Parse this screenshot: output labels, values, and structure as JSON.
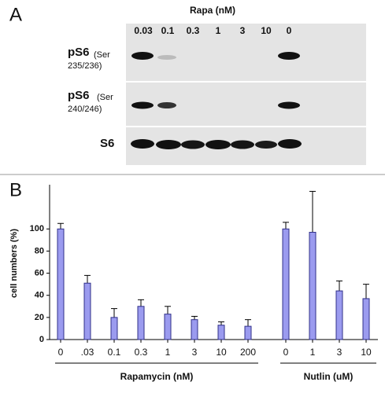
{
  "panel_a": {
    "label": "A",
    "header": "Rapa (nM)",
    "lanes": [
      "0.03",
      "0.1",
      "0.3",
      "1",
      "3",
      "10",
      "0"
    ],
    "rows": [
      {
        "name": "pS6",
        "sub": "(Ser",
        "sub2": "235/236)"
      },
      {
        "name": "pS6",
        "sub": "(Ser",
        "sub2": "240/246)"
      },
      {
        "name": "S6"
      }
    ]
  },
  "chart_data": {
    "type": "bar",
    "label": "B",
    "y_label": "cell numbers (%)",
    "color": "#9b9bef",
    "edge": "#30308a",
    "ylim": [
      0,
      140
    ],
    "yticks": [
      0,
      20,
      40,
      60,
      80,
      100
    ],
    "groups": [
      {
        "label": "Rapamycin (nM)",
        "categories": [
          "0",
          ".03",
          "0.1",
          "0.3",
          "1",
          "3",
          "10",
          "200"
        ],
        "values": [
          100,
          51,
          20,
          30,
          23,
          18,
          13,
          12
        ],
        "errors": [
          5,
          7,
          8,
          6,
          7,
          3,
          3,
          6
        ]
      },
      {
        "label": "Nutlin (uM)",
        "categories": [
          "0",
          "1",
          "3",
          "10"
        ],
        "values": [
          100,
          97,
          44,
          37
        ],
        "errors": [
          6,
          37,
          9,
          13
        ]
      }
    ]
  }
}
